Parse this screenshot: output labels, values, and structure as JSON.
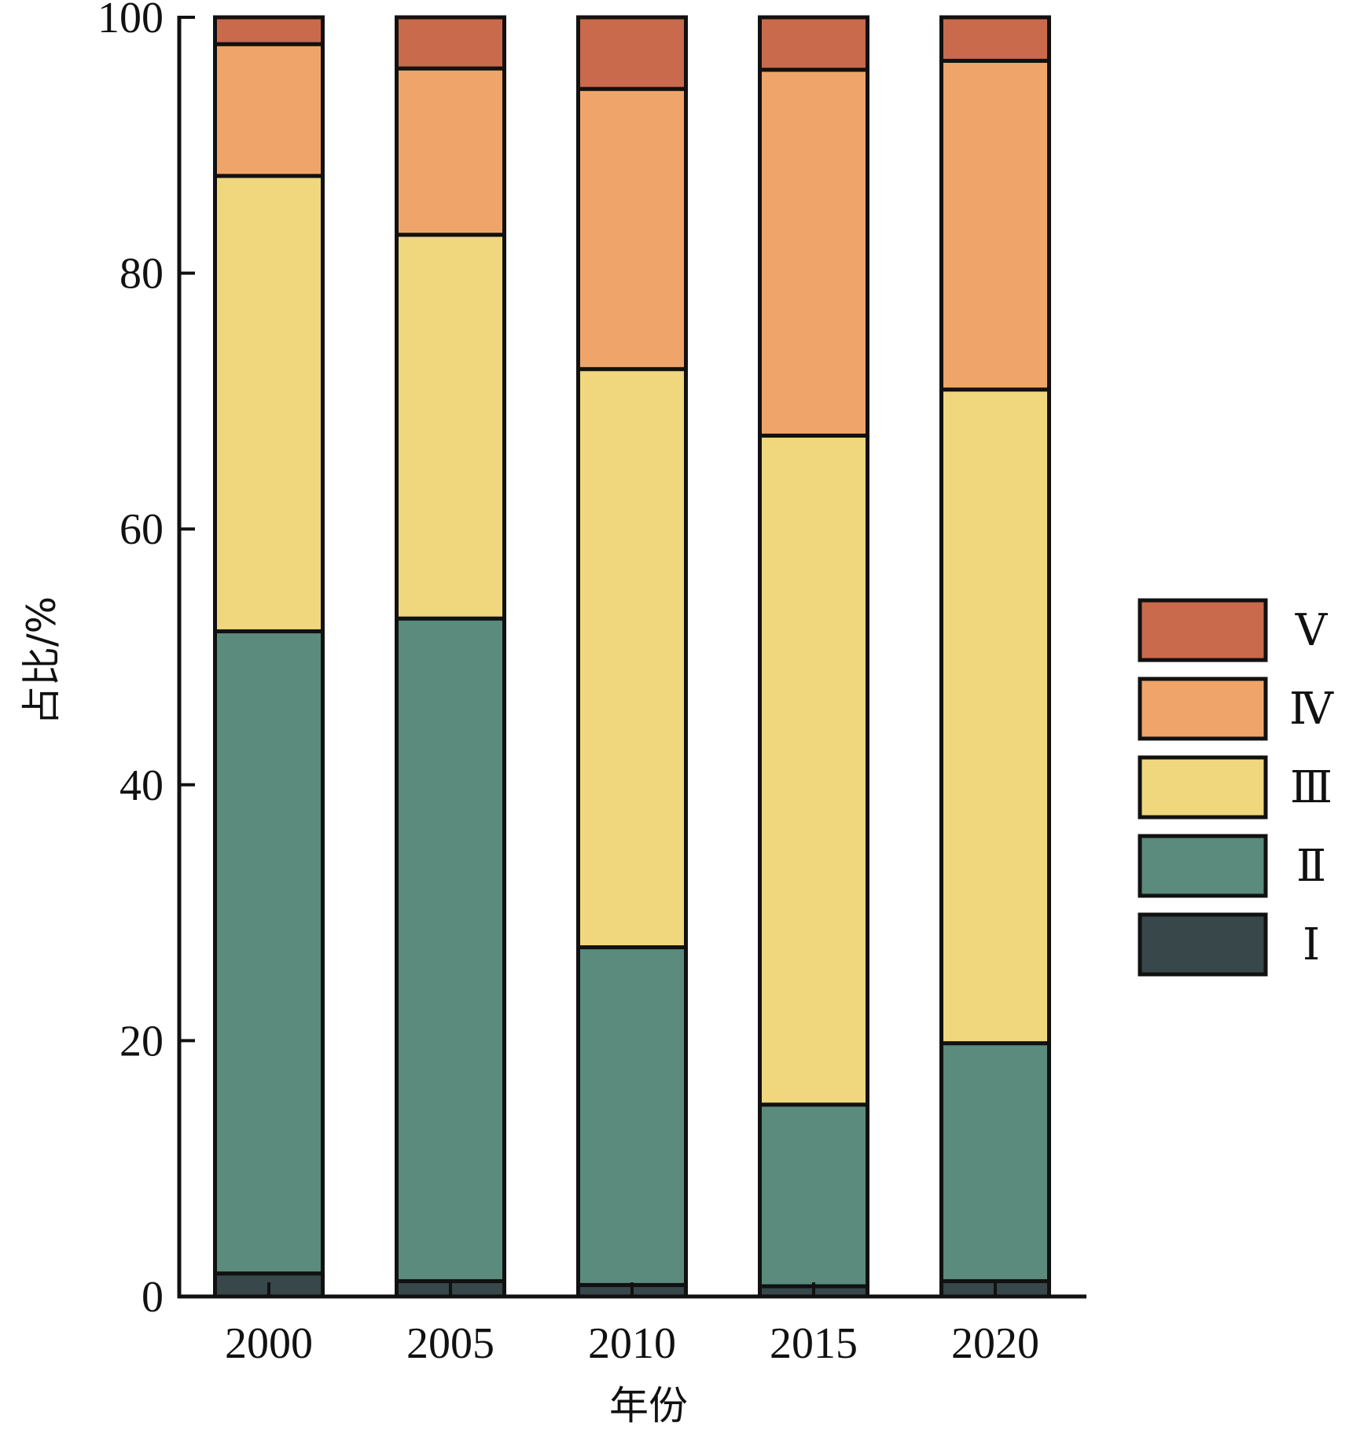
{
  "chart_data": {
    "type": "bar",
    "stacked": true,
    "categories": [
      "2000",
      "2005",
      "2010",
      "2015",
      "2020"
    ],
    "series": [
      {
        "name": "Ⅰ",
        "color": "#37474a",
        "values": [
          1.8,
          1.2,
          0.9,
          0.8,
          1.2
        ]
      },
      {
        "name": "Ⅱ",
        "color": "#5a8b7c",
        "values": [
          50.2,
          51.8,
          26.4,
          14.2,
          18.6
        ]
      },
      {
        "name": "Ⅲ",
        "color": "#f0d77e",
        "values": [
          35.6,
          30.0,
          45.2,
          52.3,
          51.1
        ]
      },
      {
        "name": "Ⅳ",
        "color": "#efa56a",
        "values": [
          10.3,
          13.0,
          21.9,
          28.6,
          25.7
        ]
      },
      {
        "name": "Ⅴ",
        "color": "#c96a4c",
        "values": [
          2.1,
          4.0,
          5.6,
          4.1,
          3.4
        ]
      }
    ],
    "xlabel": "年份",
    "ylabel": "占比/%",
    "ylim": [
      0,
      100
    ],
    "yticks": [
      "0",
      "20",
      "40",
      "60",
      "80",
      "100"
    ],
    "legend_position": "right",
    "legend_order": [
      "Ⅴ",
      "Ⅳ",
      "Ⅲ",
      "Ⅱ",
      "Ⅰ"
    ],
    "grid": false
  }
}
